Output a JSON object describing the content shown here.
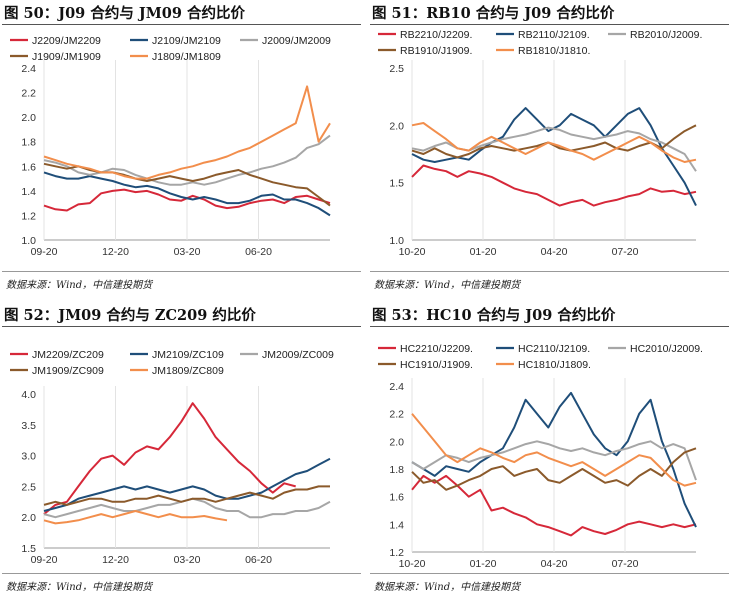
{
  "chart_data": [
    {
      "type": "line",
      "title": "图 50：J09 合约与 JM09 合约比价",
      "source": "数据来源：Wind，中信建投期货",
      "x_ticks": [
        "09-20",
        "12-20",
        "03-20",
        "06-20"
      ],
      "ylim": [
        1.0,
        2.4
      ],
      "y_ticks": [
        "1.0",
        "1.2",
        "1.4",
        "1.6",
        "1.8",
        "2.0",
        "2.2",
        "2.4"
      ],
      "series": [
        {
          "name": "J2209/JM2209",
          "color": "#d62839",
          "values": [
            1.28,
            1.25,
            1.24,
            1.29,
            1.3,
            1.38,
            1.4,
            1.41,
            1.39,
            1.4,
            1.37,
            1.33,
            1.32,
            1.36,
            1.33,
            1.28,
            1.26,
            1.27,
            1.3,
            1.32,
            1.33,
            1.3,
            1.35,
            1.36,
            1.33,
            1.3
          ]
        },
        {
          "name": "J2109/JM2109",
          "color": "#1f4e79",
          "values": [
            1.55,
            1.52,
            1.5,
            1.5,
            1.52,
            1.5,
            1.48,
            1.45,
            1.43,
            1.44,
            1.42,
            1.38,
            1.35,
            1.33,
            1.35,
            1.33,
            1.3,
            1.3,
            1.32,
            1.36,
            1.37,
            1.33,
            1.33,
            1.3,
            1.26,
            1.2
          ]
        },
        {
          "name": "J2009/JM2009",
          "color": "#a6a6a6",
          "values": [
            1.65,
            1.63,
            1.6,
            1.55,
            1.53,
            1.55,
            1.58,
            1.57,
            1.53,
            1.5,
            1.47,
            1.45,
            1.45,
            1.47,
            1.45,
            1.47,
            1.5,
            1.53,
            1.55,
            1.58,
            1.6,
            1.63,
            1.67,
            1.75,
            1.78,
            1.85
          ]
        },
        {
          "name": "J1909/JM1909",
          "color": "#8b5a2b",
          "values": [
            1.62,
            1.6,
            1.58,
            1.6,
            1.57,
            1.55,
            1.55,
            1.53,
            1.5,
            1.48,
            1.5,
            1.52,
            1.5,
            1.48,
            1.5,
            1.53,
            1.55,
            1.57,
            1.53,
            1.5,
            1.47,
            1.45,
            1.43,
            1.42,
            1.35,
            1.28
          ]
        },
        {
          "name": "J1809/JM1809",
          "color": "#f28e4c",
          "values": [
            1.68,
            1.65,
            1.62,
            1.6,
            1.58,
            1.55,
            1.55,
            1.52,
            1.5,
            1.5,
            1.53,
            1.55,
            1.58,
            1.6,
            1.63,
            1.65,
            1.68,
            1.72,
            1.75,
            1.8,
            1.85,
            1.9,
            1.95,
            2.25,
            1.8,
            1.95
          ]
        }
      ],
      "legend_cols": 3
    },
    {
      "type": "line",
      "title": "图 51：RB10 合约与 J09 合约比价",
      "source": "数据来源：Wind，中信建投期货",
      "x_ticks": [
        "10-20",
        "01-20",
        "04-20",
        "07-20"
      ],
      "ylim": [
        1.0,
        2.5
      ],
      "y_ticks": [
        "1.0",
        "1.5",
        "2.0",
        "2.5"
      ],
      "series": [
        {
          "name": "RB2210/J2209.",
          "color": "#d62839",
          "values": [
            1.55,
            1.65,
            1.62,
            1.6,
            1.55,
            1.6,
            1.58,
            1.55,
            1.5,
            1.45,
            1.42,
            1.4,
            1.35,
            1.3,
            1.33,
            1.35,
            1.3,
            1.33,
            1.35,
            1.38,
            1.4,
            1.45,
            1.42,
            1.43,
            1.4,
            1.42
          ]
        },
        {
          "name": "RB2110/J2109.",
          "color": "#1f4e79",
          "values": [
            1.75,
            1.7,
            1.68,
            1.7,
            1.72,
            1.7,
            1.78,
            1.85,
            1.9,
            2.05,
            2.15,
            2.05,
            1.95,
            2.0,
            2.1,
            2.05,
            2.0,
            1.9,
            2.0,
            2.1,
            2.15,
            2.0,
            1.8,
            1.65,
            1.5,
            1.3
          ]
        },
        {
          "name": "RB2010/J2009.",
          "color": "#a6a6a6",
          "values": [
            1.8,
            1.78,
            1.82,
            1.85,
            1.8,
            1.78,
            1.82,
            1.85,
            1.88,
            1.9,
            1.92,
            1.95,
            1.98,
            1.96,
            1.92,
            1.9,
            1.88,
            1.9,
            1.92,
            1.95,
            1.93,
            1.88,
            1.85,
            1.8,
            1.75,
            1.6
          ]
        },
        {
          "name": "RB1910/J1909.",
          "color": "#8b5a2b",
          "values": [
            1.78,
            1.75,
            1.8,
            1.75,
            1.72,
            1.75,
            1.8,
            1.82,
            1.8,
            1.78,
            1.8,
            1.82,
            1.85,
            1.8,
            1.78,
            1.8,
            1.82,
            1.85,
            1.8,
            1.78,
            1.82,
            1.85,
            1.8,
            1.88,
            1.95,
            2.0
          ]
        },
        {
          "name": "RB1810/J1810.",
          "color": "#f28e4c",
          "values": [
            2.0,
            2.02,
            1.95,
            1.88,
            1.8,
            1.78,
            1.85,
            1.9,
            1.85,
            1.8,
            1.75,
            1.8,
            1.85,
            1.82,
            1.78,
            1.75,
            1.7,
            1.75,
            1.8,
            1.85,
            1.9,
            1.85,
            1.78,
            1.72,
            1.68,
            1.7
          ]
        }
      ],
      "legend_cols": 3
    },
    {
      "type": "line",
      "title": "图 52：JM09 合约与 ZC209 约比价",
      "source": "数据来源：Wind，中信建投期货",
      "x_ticks": [
        "09-20",
        "12-20",
        "03-20",
        "06-20"
      ],
      "ylim": [
        1.5,
        4.0
      ],
      "y_ticks": [
        "1.5",
        "2.0",
        "2.5",
        "3.0",
        "3.5",
        "4.0"
      ],
      "series": [
        {
          "name": "JM2209/ZC209",
          "color": "#d62839",
          "values": [
            2.05,
            2.2,
            2.25,
            2.5,
            2.75,
            2.95,
            3.0,
            2.85,
            3.05,
            3.15,
            3.1,
            3.3,
            3.55,
            3.85,
            3.6,
            3.3,
            3.1,
            2.9,
            2.75,
            2.55,
            2.4,
            2.55,
            2.5,
            null,
            null,
            null
          ]
        },
        {
          "name": "JM2109/ZC109",
          "color": "#1f4e79",
          "values": [
            2.1,
            2.15,
            2.2,
            2.3,
            2.35,
            2.4,
            2.45,
            2.5,
            2.45,
            2.5,
            2.45,
            2.4,
            2.45,
            2.5,
            2.45,
            2.35,
            2.3,
            2.3,
            2.35,
            2.4,
            2.5,
            2.6,
            2.7,
            2.75,
            2.85,
            2.95
          ]
        },
        {
          "name": "JM2009/ZC009",
          "color": "#a6a6a6",
          "values": [
            2.05,
            2.0,
            2.05,
            2.1,
            2.15,
            2.2,
            2.15,
            2.1,
            2.1,
            2.15,
            2.2,
            2.2,
            2.25,
            2.3,
            2.25,
            2.15,
            2.1,
            2.1,
            2.0,
            2.0,
            2.05,
            2.05,
            2.1,
            2.1,
            2.15,
            2.25
          ]
        },
        {
          "name": "JM1909/ZC909",
          "color": "#8b5a2b",
          "values": [
            2.2,
            2.25,
            2.2,
            2.25,
            2.3,
            2.3,
            2.25,
            2.25,
            2.3,
            2.3,
            2.35,
            2.3,
            2.25,
            2.3,
            2.3,
            2.25,
            2.3,
            2.35,
            2.4,
            2.35,
            2.3,
            2.4,
            2.45,
            2.45,
            2.5,
            2.5
          ]
        },
        {
          "name": "JM1809/ZC809",
          "color": "#f28e4c",
          "values": [
            1.95,
            1.9,
            1.92,
            1.95,
            2.0,
            2.05,
            2.0,
            2.05,
            2.1,
            2.05,
            2.0,
            2.05,
            2.0,
            2.0,
            2.02,
            1.98,
            1.95,
            null,
            null,
            null,
            null,
            null,
            null,
            null,
            null,
            null
          ]
        }
      ],
      "legend_cols": 3
    },
    {
      "type": "line",
      "title": "图 53：HC10 合约与 J09 合约比价",
      "source": "数据来源：Wind，中信建投期货",
      "x_ticks": [
        "10-20",
        "01-20",
        "04-20",
        "07-20"
      ],
      "ylim": [
        1.2,
        2.4
      ],
      "y_ticks": [
        "1.2",
        "1.4",
        "1.6",
        "1.8",
        "2.0",
        "2.2",
        "2.4"
      ],
      "series": [
        {
          "name": "HC2210/J2209.",
          "color": "#d62839",
          "values": [
            1.65,
            1.75,
            1.7,
            1.75,
            1.68,
            1.6,
            1.65,
            1.5,
            1.52,
            1.48,
            1.45,
            1.4,
            1.38,
            1.35,
            1.32,
            1.38,
            1.35,
            1.33,
            1.36,
            1.4,
            1.42,
            1.4,
            1.38,
            1.4,
            1.38,
            1.4
          ]
        },
        {
          "name": "HC2110/J2109.",
          "color": "#1f4e79",
          "values": [
            1.85,
            1.8,
            1.75,
            1.82,
            1.8,
            1.78,
            1.85,
            1.9,
            1.95,
            2.1,
            2.3,
            2.2,
            2.1,
            2.25,
            2.35,
            2.2,
            2.05,
            1.95,
            1.9,
            2.0,
            2.2,
            2.3,
            2.0,
            1.8,
            1.55,
            1.38
          ]
        },
        {
          "name": "HC2010/J2009.",
          "color": "#a6a6a6",
          "values": [
            1.85,
            1.8,
            1.85,
            1.9,
            1.88,
            1.85,
            1.88,
            1.9,
            1.92,
            1.95,
            1.98,
            2.0,
            1.98,
            1.95,
            1.93,
            1.95,
            1.92,
            1.9,
            1.93,
            1.95,
            1.98,
            2.0,
            1.95,
            1.98,
            1.95,
            1.72
          ]
        },
        {
          "name": "HC1910/J1909.",
          "color": "#8b5a2b",
          "values": [
            1.78,
            1.7,
            1.72,
            1.65,
            1.68,
            1.72,
            1.75,
            1.8,
            1.82,
            1.75,
            1.78,
            1.8,
            1.72,
            1.7,
            1.75,
            1.8,
            1.75,
            1.7,
            1.72,
            1.68,
            1.75,
            1.8,
            1.75,
            1.85,
            1.92,
            1.95
          ]
        },
        {
          "name": "HC1810/J1809.",
          "color": "#f28e4c",
          "values": [
            2.2,
            2.1,
            2.0,
            1.9,
            1.85,
            1.9,
            1.95,
            1.92,
            1.88,
            1.85,
            1.9,
            1.92,
            1.88,
            1.85,
            1.82,
            1.85,
            1.8,
            1.75,
            1.8,
            1.85,
            1.9,
            1.88,
            1.8,
            1.72,
            1.68,
            1.7
          ]
        }
      ],
      "legend_cols": 3
    }
  ]
}
